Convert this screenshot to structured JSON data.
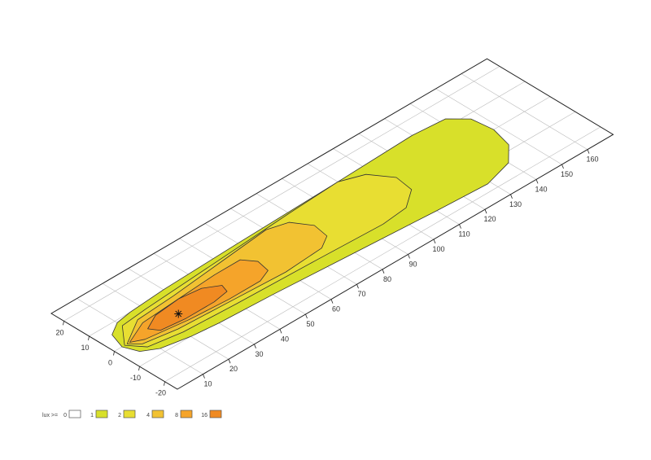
{
  "chart_data": {
    "type": "contour",
    "projection": "isometric",
    "x_range": [
      0,
      170
    ],
    "y_range": [
      -25,
      25
    ],
    "x_ticks": [
      10,
      20,
      30,
      40,
      50,
      60,
      70,
      80,
      90,
      100,
      110,
      120,
      130,
      140,
      150,
      160
    ],
    "y_ticks": [
      20,
      10,
      0,
      -10,
      -20
    ],
    "grid": true,
    "marker": {
      "symbol": "asterisk",
      "x": 25,
      "y": 0
    },
    "legend": {
      "title": "lux >=",
      "placement": "bottom-left",
      "entries": [
        {
          "label": "0",
          "color": "#ffffff"
        },
        {
          "label": "1",
          "color": "#d8e02a"
        },
        {
          "label": "2",
          "color": "#e8de32"
        },
        {
          "label": "4",
          "color": "#f2c232"
        },
        {
          "label": "8",
          "color": "#f5a42a"
        },
        {
          "label": "16",
          "color": "#f08a22"
        }
      ]
    },
    "contours": [
      {
        "level": 1,
        "color": "#d8e02a",
        "points": [
          [
            3,
            0
          ],
          [
            5,
            6
          ],
          [
            10,
            9
          ],
          [
            16,
            10
          ],
          [
            30,
            11
          ],
          [
            60,
            12
          ],
          [
            100,
            13
          ],
          [
            130,
            14
          ],
          [
            142,
            13
          ],
          [
            147,
            8
          ],
          [
            148,
            0
          ],
          [
            146,
            -8
          ],
          [
            140,
            -14
          ],
          [
            129,
            -17
          ],
          [
            110,
            -16
          ],
          [
            80,
            -14
          ],
          [
            50,
            -12
          ],
          [
            30,
            -11
          ],
          [
            20,
            -10
          ],
          [
            10,
            -8
          ],
          [
            5,
            -5
          ]
        ]
      },
      {
        "level": 2,
        "color": "#e8de32",
        "points": [
          [
            4,
            0
          ],
          [
            10,
            7
          ],
          [
            20,
            8
          ],
          [
            50,
            10
          ],
          [
            80,
            12
          ],
          [
            100,
            13
          ],
          [
            108,
            10
          ],
          [
            113,
            3
          ],
          [
            112,
            -4
          ],
          [
            105,
            -9
          ],
          [
            95,
            -10
          ],
          [
            70,
            -9
          ],
          [
            40,
            -8
          ],
          [
            20,
            -7
          ],
          [
            8,
            -5
          ]
        ]
      },
      {
        "level": 4,
        "color": "#f2c232",
        "points": [
          [
            5,
            0
          ],
          [
            15,
            6
          ],
          [
            30,
            7
          ],
          [
            50,
            9
          ],
          [
            70,
            11
          ],
          [
            77,
            9
          ],
          [
            81,
            3
          ],
          [
            80,
            -3
          ],
          [
            75,
            -6
          ],
          [
            60,
            -7
          ],
          [
            40,
            -6
          ],
          [
            20,
            -5
          ],
          [
            8,
            -3
          ]
        ]
      },
      {
        "level": 8,
        "color": "#f5a42a",
        "points": [
          [
            6,
            0
          ],
          [
            15,
            4
          ],
          [
            30,
            5
          ],
          [
            45,
            6
          ],
          [
            55,
            6
          ],
          [
            58,
            2
          ],
          [
            57,
            -3
          ],
          [
            52,
            -5
          ],
          [
            40,
            -5
          ],
          [
            25,
            -4
          ],
          [
            10,
            -2
          ]
        ]
      },
      {
        "level": 16,
        "color": "#f08a22",
        "points": [
          [
            14,
            1
          ],
          [
            20,
            4
          ],
          [
            30,
            5
          ],
          [
            38,
            4
          ],
          [
            43,
            1
          ],
          [
            42,
            -2
          ],
          [
            36,
            -3
          ],
          [
            25,
            -3
          ],
          [
            16,
            -2
          ]
        ]
      }
    ]
  }
}
